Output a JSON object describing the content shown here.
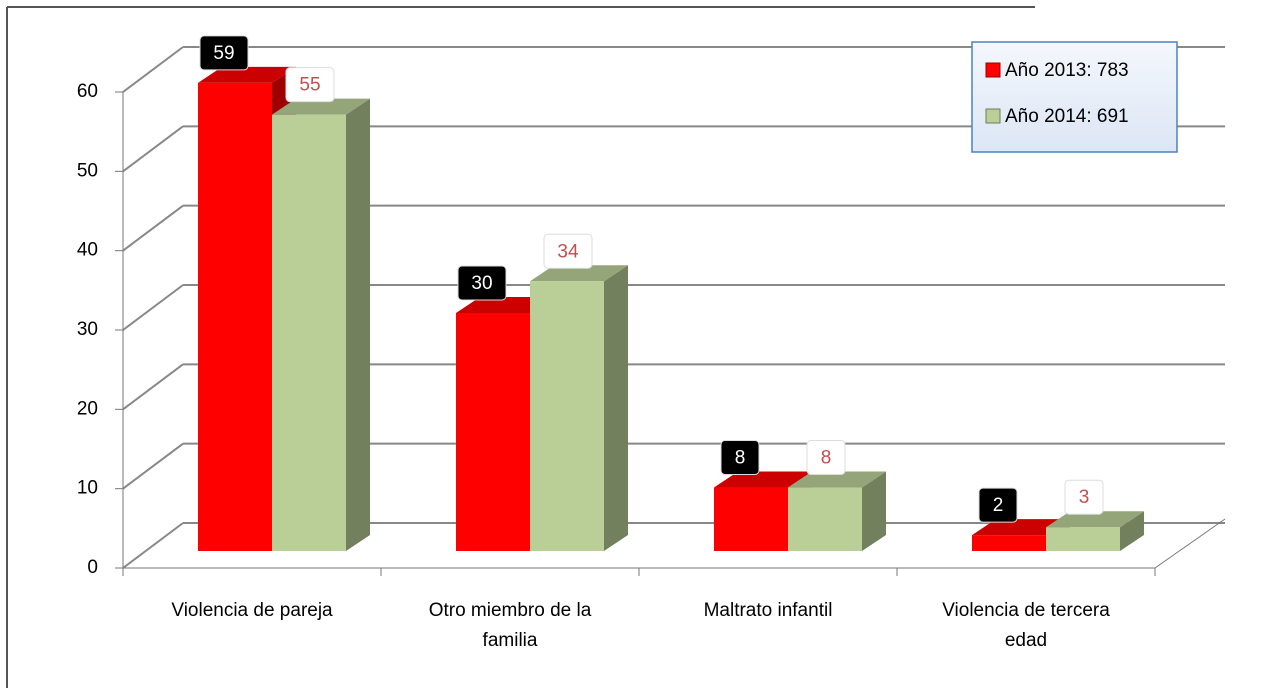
{
  "chart_data": {
    "type": "bar3d",
    "categories": [
      "Violencia de pareja",
      "Otro miembro de la familia",
      "Maltrato infantil",
      "Violencia de tercera edad"
    ],
    "series": [
      {
        "name": "Año 2013: 783",
        "color": "#ff0000",
        "values": [
          59,
          30,
          8,
          2
        ]
      },
      {
        "name": "Año 2014: 691",
        "color": "#b9cf97",
        "values": [
          55,
          34,
          8,
          3
        ]
      }
    ],
    "ylim": [
      0,
      60
    ],
    "yticks": [
      0,
      10,
      20,
      30,
      40,
      50,
      60
    ],
    "grid": true,
    "legend": "top-right"
  }
}
